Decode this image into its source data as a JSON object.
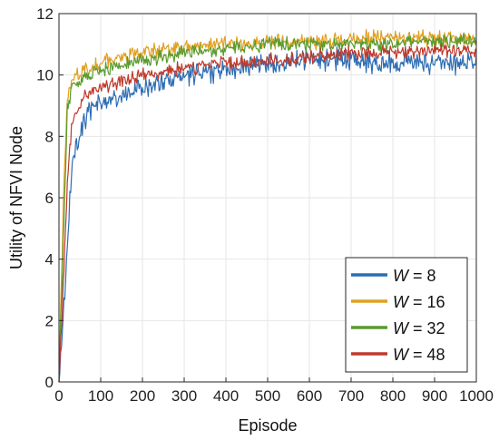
{
  "chart_data": {
    "type": "line",
    "title": "",
    "xlabel": "Episode",
    "ylabel": "Utility of NFVI Node",
    "xlim": [
      0,
      1000
    ],
    "ylim": [
      0,
      12
    ],
    "xticks": [
      "0",
      "100",
      "200",
      "300",
      "400",
      "500",
      "600",
      "700",
      "800",
      "900",
      "1000"
    ],
    "yticks": [
      "0",
      "2",
      "4",
      "6",
      "8",
      "10",
      "12"
    ],
    "grid": true,
    "legend_position": "bottom-right",
    "series": [
      {
        "name": "W = 8",
        "legend_var": "W",
        "legend_val": "8",
        "color": "#2d6db3",
        "x": [
          0,
          10,
          20,
          30,
          40,
          60,
          80,
          100,
          150,
          200,
          250,
          300,
          350,
          400,
          450,
          500,
          550,
          600,
          650,
          700,
          750,
          800,
          850,
          900,
          950,
          1000
        ],
        "values": [
          0,
          2.0,
          4.5,
          6.8,
          7.8,
          8.5,
          8.9,
          9.1,
          9.3,
          9.6,
          9.8,
          10.0,
          10.1,
          10.2,
          10.3,
          10.4,
          10.4,
          10.5,
          10.5,
          10.5,
          10.4,
          10.4,
          10.4,
          10.4,
          10.4,
          10.4
        ],
        "noise": 0.22
      },
      {
        "name": "W = 16",
        "legend_var": "W",
        "legend_val": "16",
        "color": "#e0a020",
        "x": [
          0,
          10,
          20,
          30,
          40,
          60,
          80,
          100,
          150,
          200,
          250,
          300,
          350,
          400,
          450,
          500,
          550,
          600,
          650,
          700,
          750,
          800,
          850,
          900,
          950,
          1000
        ],
        "values": [
          0,
          5.5,
          9.2,
          9.8,
          10.0,
          10.2,
          10.3,
          10.4,
          10.6,
          10.7,
          10.8,
          10.9,
          11.0,
          11.0,
          11.0,
          11.1,
          11.1,
          11.1,
          11.1,
          11.2,
          11.2,
          11.2,
          11.2,
          11.2,
          11.2,
          11.2
        ],
        "noise": 0.15
      },
      {
        "name": "W = 32",
        "legend_var": "W",
        "legend_val": "32",
        "color": "#5a9b2e",
        "x": [
          0,
          10,
          20,
          30,
          40,
          60,
          80,
          100,
          150,
          200,
          250,
          300,
          350,
          400,
          450,
          500,
          550,
          600,
          650,
          700,
          750,
          800,
          850,
          900,
          950,
          1000
        ],
        "values": [
          0,
          4.5,
          8.8,
          9.5,
          9.7,
          9.9,
          10.0,
          10.1,
          10.3,
          10.5,
          10.6,
          10.7,
          10.8,
          10.9,
          10.9,
          11.0,
          11.0,
          11.0,
          11.0,
          11.0,
          11.0,
          11.0,
          11.1,
          11.1,
          11.1,
          11.1
        ],
        "noise": 0.14
      },
      {
        "name": "W = 48",
        "legend_var": "W",
        "legend_val": "48",
        "color": "#c0392b",
        "x": [
          0,
          10,
          20,
          30,
          40,
          60,
          80,
          100,
          150,
          200,
          250,
          300,
          350,
          400,
          450,
          500,
          550,
          600,
          650,
          700,
          750,
          800,
          850,
          900,
          950,
          1000
        ],
        "values": [
          0,
          3.0,
          6.5,
          8.2,
          8.8,
          9.3,
          9.5,
          9.6,
          9.8,
          10.0,
          10.1,
          10.2,
          10.3,
          10.4,
          10.4,
          10.5,
          10.5,
          10.6,
          10.6,
          10.7,
          10.7,
          10.7,
          10.8,
          10.8,
          10.8,
          10.8
        ],
        "noise": 0.14
      }
    ]
  }
}
